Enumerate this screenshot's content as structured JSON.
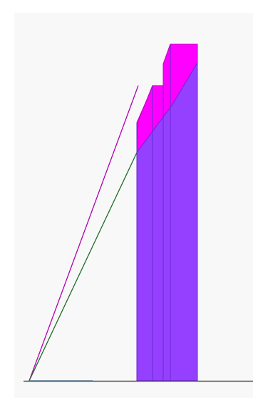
{
  "scene": {
    "colors": {
      "background": "#ffffff",
      "panel": "#f8f8f8",
      "purple": "#9540ff",
      "purple_edge": "#6a2acb",
      "magenta": "#ff00ff",
      "magenta_edge": "#c000c0",
      "line_magenta": "#b000b0",
      "line_green": "#1f6a2a",
      "baseline": "#222222",
      "baseline_tint": "#4f7fa8"
    }
  }
}
